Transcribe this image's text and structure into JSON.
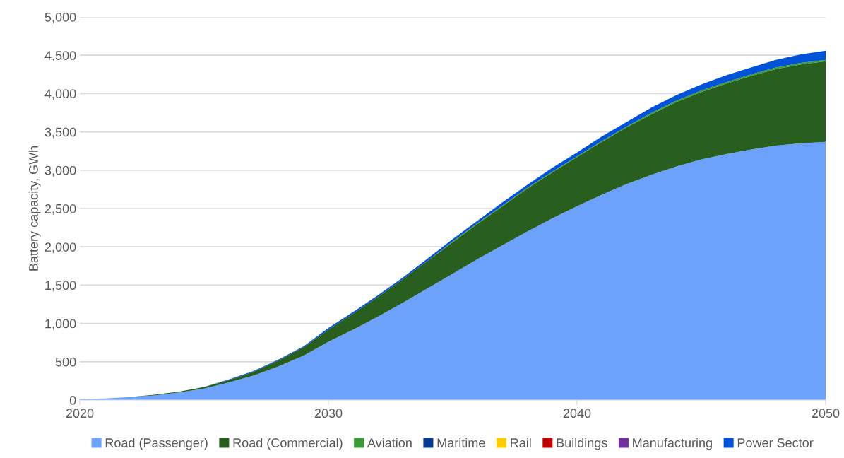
{
  "chart_data": {
    "type": "area",
    "stacked": true,
    "ylabel": "Battery capacity, GWh",
    "x": [
      2020,
      2021,
      2022,
      2023,
      2024,
      2025,
      2026,
      2027,
      2028,
      2029,
      2030,
      2031,
      2032,
      2033,
      2034,
      2035,
      2036,
      2037,
      2038,
      2039,
      2040,
      2041,
      2042,
      2043,
      2044,
      2045,
      2046,
      2047,
      2048,
      2049,
      2050
    ],
    "series": [
      {
        "name": "Road (Passenger)",
        "color": "#6ca2fc",
        "values": [
          10,
          20,
          40,
          60,
          100,
          150,
          230,
          320,
          440,
          580,
          760,
          920,
          1090,
          1270,
          1460,
          1650,
          1840,
          2020,
          2200,
          2370,
          2530,
          2680,
          2820,
          2940,
          3050,
          3140,
          3210,
          3270,
          3320,
          3350,
          3370
        ]
      },
      {
        "name": "Road (Commercial)",
        "color": "#285e1e",
        "values": [
          0,
          0,
          0,
          10,
          10,
          20,
          30,
          50,
          80,
          110,
          160,
          210,
          260,
          310,
          360,
          410,
          460,
          510,
          560,
          600,
          640,
          690,
          740,
          790,
          840,
          880,
          920,
          960,
          1000,
          1030,
          1050
        ]
      },
      {
        "name": "Aviation",
        "color": "#3a9b34",
        "values": [
          0,
          0,
          0,
          0,
          0,
          0,
          0,
          0,
          0,
          0,
          0,
          0,
          0,
          0,
          0,
          10,
          10,
          10,
          10,
          10,
          10,
          10,
          10,
          20,
          20,
          20,
          20,
          20,
          20,
          20,
          20
        ]
      },
      {
        "name": "Maritime",
        "color": "#053a8e",
        "values": [
          null,
          null,
          null,
          null,
          null,
          null,
          null,
          null,
          null,
          null,
          null,
          null,
          null,
          null,
          null,
          null,
          null,
          null,
          null,
          null,
          null,
          null,
          null,
          null,
          null,
          null,
          null,
          null,
          null,
          null,
          null
        ]
      },
      {
        "name": "Rail",
        "color": "#ffcc00",
        "values": [
          null,
          null,
          null,
          null,
          null,
          null,
          null,
          null,
          null,
          null,
          null,
          null,
          null,
          null,
          null,
          null,
          null,
          null,
          null,
          null,
          null,
          null,
          null,
          null,
          null,
          null,
          null,
          null,
          null,
          null,
          null
        ]
      },
      {
        "name": "Buildings",
        "color": "#c00000",
        "values": [
          null,
          null,
          null,
          null,
          null,
          null,
          null,
          null,
          null,
          null,
          null,
          null,
          null,
          null,
          null,
          null,
          null,
          null,
          null,
          null,
          null,
          null,
          null,
          null,
          null,
          null,
          null,
          null,
          null,
          null,
          null
        ]
      },
      {
        "name": "Manufacturing",
        "color": "#7030a0",
        "values": [
          null,
          null,
          null,
          null,
          null,
          null,
          null,
          null,
          null,
          null,
          null,
          null,
          null,
          null,
          null,
          null,
          null,
          null,
          null,
          null,
          null,
          null,
          null,
          null,
          null,
          null,
          null,
          null,
          null,
          null,
          null
        ]
      },
      {
        "name": "Power Sector",
        "color": "#0052d9",
        "values": [
          0,
          0,
          0,
          0,
          0,
          0,
          10,
          10,
          10,
          10,
          20,
          20,
          20,
          20,
          30,
          30,
          30,
          40,
          40,
          50,
          50,
          60,
          60,
          70,
          70,
          80,
          90,
          90,
          100,
          110,
          120
        ]
      }
    ],
    "xlim": [
      2020,
      2050
    ],
    "xticks": [
      2020,
      2030,
      2040,
      2050
    ],
    "ylim": [
      0,
      5000
    ],
    "yticks": [
      0,
      500,
      {
        "value": 1000,
        "label": "1,000"
      },
      {
        "value": 1500,
        "label": "1,500"
      },
      {
        "value": 2000,
        "label": "2,000"
      },
      {
        "value": 2500,
        "label": "2,500"
      },
      {
        "value": 3000,
        "label": "3,000"
      },
      {
        "value": 3500,
        "label": "3,500"
      },
      {
        "value": 4000,
        "label": "4,000"
      },
      {
        "value": 4500,
        "label": "4,500"
      },
      {
        "value": 5000,
        "label": "5,000"
      }
    ],
    "grid": "y",
    "legend": "bottom"
  }
}
